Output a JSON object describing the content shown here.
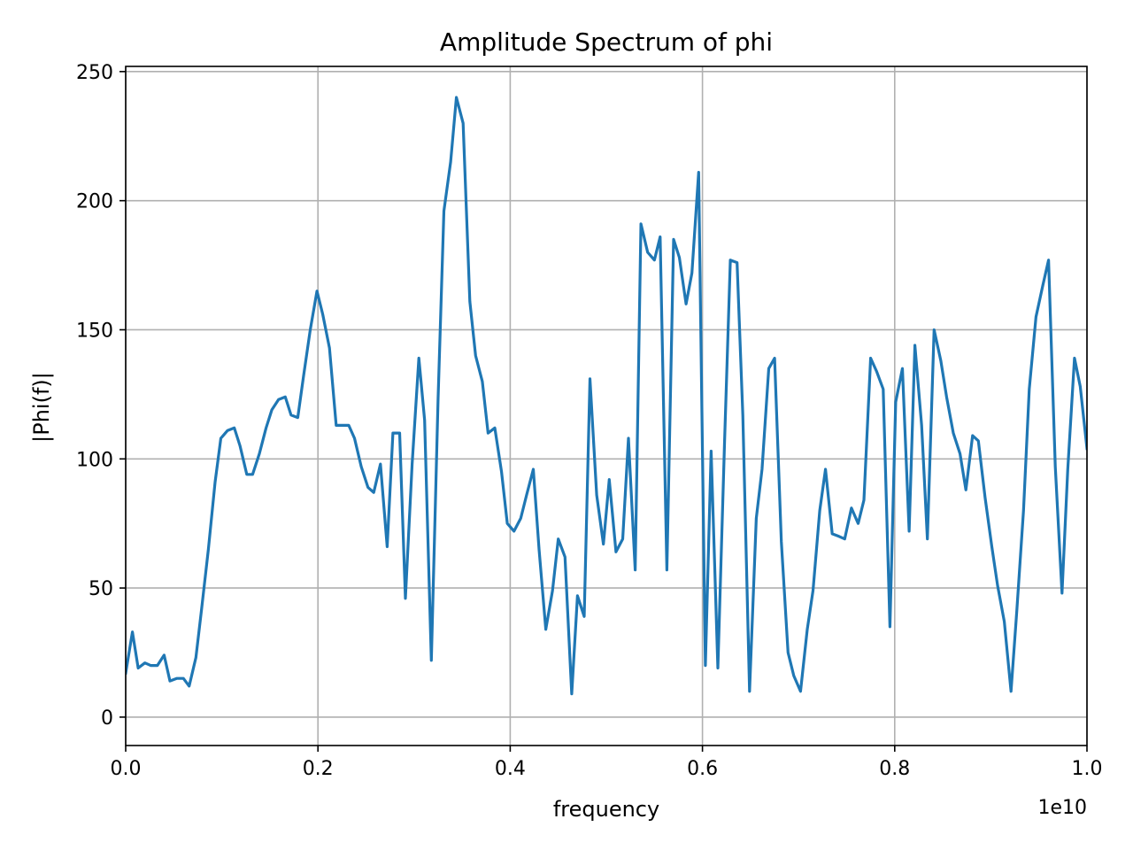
{
  "chart_data": {
    "type": "line",
    "title": "Amplitude Spectrum of phi",
    "xlabel": "frequency",
    "ylabel": "|Phi(f)|",
    "x_offset_label": "1e10",
    "xlim": [
      0.0,
      1.0
    ],
    "ylim": [
      -11,
      252
    ],
    "xticks": [
      0.0,
      0.2,
      0.4,
      0.6,
      0.8,
      1.0
    ],
    "xtick_labels": [
      "0.0",
      "0.2",
      "0.4",
      "0.6",
      "0.8",
      "1.0"
    ],
    "yticks": [
      0,
      50,
      100,
      150,
      200,
      250
    ],
    "ytick_labels": [
      "0",
      "50",
      "100",
      "150",
      "200",
      "250"
    ],
    "grid": true,
    "series": [
      {
        "color": "#1f77b4",
        "x": [
          0.0,
          0.007,
          0.013,
          0.02,
          0.026,
          0.033,
          0.04,
          0.046,
          0.053,
          0.06,
          0.066,
          0.073,
          0.079,
          0.086,
          0.093,
          0.099,
          0.106,
          0.113,
          0.119,
          0.126,
          0.132,
          0.139,
          0.146,
          0.152,
          0.159,
          0.166,
          0.172,
          0.179,
          0.185,
          0.192,
          0.199,
          0.205,
          0.212,
          0.219,
          0.225,
          0.232,
          0.238,
          0.245,
          0.252,
          0.258,
          0.265,
          0.272,
          0.278,
          0.285,
          0.291,
          0.298,
          0.305,
          0.311,
          0.318,
          0.325,
          0.331,
          0.338,
          0.344,
          0.351,
          0.358,
          0.364,
          0.371,
          0.377,
          0.384,
          0.391,
          0.397,
          0.404,
          0.411,
          0.417,
          0.424,
          0.43,
          0.437,
          0.444,
          0.45,
          0.457,
          0.464,
          0.47,
          0.477,
          0.483,
          0.49,
          0.497,
          0.503,
          0.51,
          0.517,
          0.523,
          0.53,
          0.536,
          0.543,
          0.55,
          0.556,
          0.563,
          0.57,
          0.576,
          0.583,
          0.589,
          0.596,
          0.603,
          0.609,
          0.616,
          0.623,
          0.629,
          0.636,
          0.642,
          0.649,
          0.656,
          0.662,
          0.669,
          0.675,
          0.682,
          0.689,
          0.695,
          0.702,
          0.709,
          0.715,
          0.722,
          0.728,
          0.735,
          0.742,
          0.748,
          0.755,
          0.762,
          0.768,
          0.775,
          0.781,
          0.788,
          0.795,
          0.801,
          0.808,
          0.815,
          0.821,
          0.828,
          0.834,
          0.841,
          0.848,
          0.854,
          0.861,
          0.868,
          0.874,
          0.881,
          0.887,
          0.894,
          0.901,
          0.907,
          0.914,
          0.921,
          0.927,
          0.934,
          0.94,
          0.947,
          0.954,
          0.96,
          0.967,
          0.974,
          0.98,
          0.987,
          0.993,
          1.0
        ],
        "values": [
          17,
          33,
          19,
          21,
          20,
          20,
          24,
          14,
          15,
          15,
          12,
          23,
          42,
          65,
          91,
          108,
          111,
          112,
          105,
          94,
          94,
          102,
          112,
          119,
          123,
          124,
          117,
          116,
          132,
          150,
          165,
          156,
          143,
          113,
          113,
          113,
          108,
          97,
          89,
          87,
          98,
          66,
          110,
          110,
          46,
          98,
          139,
          115,
          22,
          123,
          196,
          215,
          240,
          230,
          161,
          140,
          130,
          110,
          112,
          95,
          75,
          72,
          77,
          86,
          96,
          65,
          34,
          49,
          69,
          62,
          9,
          47,
          39,
          131,
          86,
          67,
          92,
          64,
          69,
          108,
          57,
          191,
          180,
          177,
          186,
          57,
          185,
          178,
          160,
          172,
          211,
          20,
          103,
          19,
          107,
          177,
          176,
          117,
          10,
          77,
          96,
          135,
          139,
          68,
          25,
          16,
          10,
          34,
          49,
          80,
          96,
          71,
          70,
          69,
          81,
          75,
          84,
          139,
          134,
          127,
          35,
          122,
          135,
          72,
          144,
          113,
          69,
          150,
          138,
          124,
          110,
          102,
          88,
          109,
          107,
          85,
          66,
          51,
          37,
          10,
          41,
          80,
          127,
          155,
          167,
          177,
          97,
          48,
          96,
          139,
          128,
          104
        ]
      }
    ]
  }
}
